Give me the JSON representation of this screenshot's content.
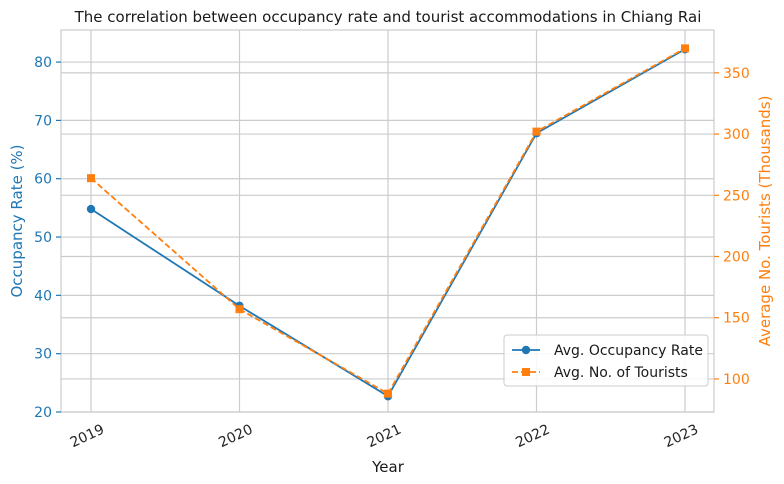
{
  "chart_data": {
    "type": "line",
    "title": "The correlation between occupancy rate and tourist accommodations in Chiang Rai",
    "xlabel": "Year",
    "ylabel": "Occupancy Rate (%)",
    "y2label": "Average No. Tourists (Thousands)",
    "categories": [
      "2019",
      "2020",
      "2021",
      "2022",
      "2023"
    ],
    "ylim": [
      20,
      85.5
    ],
    "y2lim": [
      73,
      385
    ],
    "yticks": [
      "20",
      "30",
      "40",
      "50",
      "60",
      "70",
      "80"
    ],
    "y2ticks": [
      "100",
      "150",
      "200",
      "250",
      "300",
      "350"
    ],
    "grid": true,
    "legend_position": "lower-right",
    "colors": {
      "occupancy": "#1f77b4",
      "tourists": "#ff7f0e",
      "grid": "#cccccc"
    },
    "series": [
      {
        "name": "Avg. Occupancy Rate",
        "axis": "left",
        "marker": "circle",
        "linestyle": "solid",
        "values": [
          54.8,
          38.2,
          22.7,
          67.8,
          82.2
        ]
      },
      {
        "name": "Avg. No. of Tourists",
        "axis": "right",
        "marker": "square",
        "linestyle": "dashed",
        "values": [
          264,
          157,
          88,
          302,
          370
        ]
      }
    ]
  }
}
